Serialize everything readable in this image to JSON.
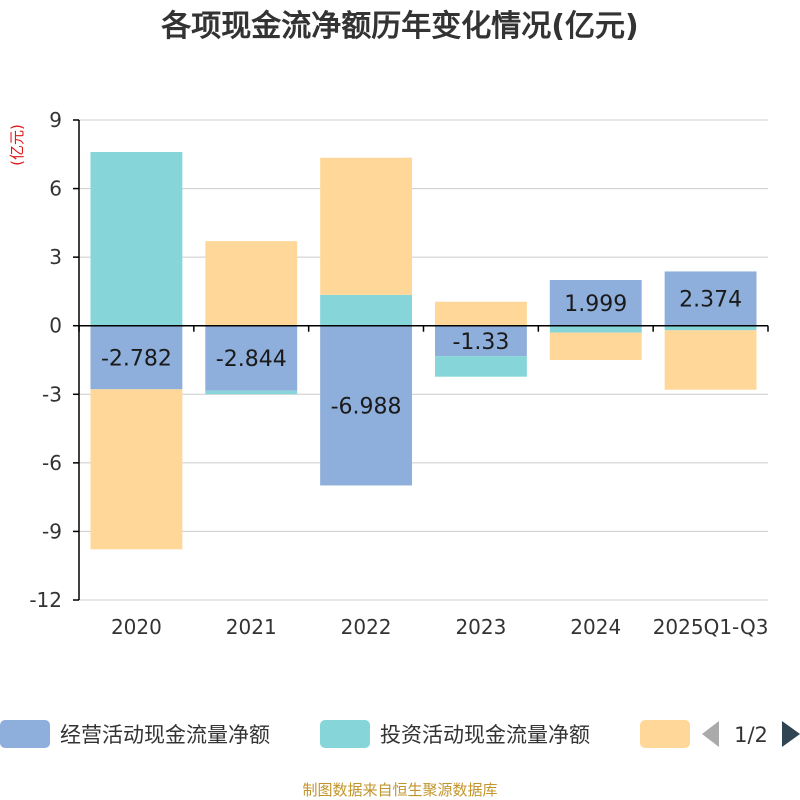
{
  "chart_data": {
    "type": "bar",
    "stacked": true,
    "title": "各项现金流净额历年变化情况(亿元)",
    "ylabel": "(亿元)",
    "ylim": [
      -12,
      9
    ],
    "yticks": [
      9,
      6,
      3,
      0,
      -3,
      -6,
      -9,
      -12
    ],
    "categories": [
      "2020",
      "2021",
      "2022",
      "2023",
      "2024",
      "2025Q1-Q3"
    ],
    "series": [
      {
        "name": "经营活动现金流量净额",
        "color": "#8eaedb",
        "values": [
          -2.782,
          -2.844,
          -6.988,
          -1.33,
          1.999,
          2.374
        ],
        "labels": [
          "-2.782",
          "-2.844",
          "-6.988",
          "-1.33",
          "1.999",
          "2.374"
        ]
      },
      {
        "name": "投资活动现金流量净额",
        "color": "#86d5d8",
        "values": [
          7.6,
          -0.15,
          1.35,
          -0.9,
          -0.3,
          -0.2
        ]
      },
      {
        "name": "",
        "color": "#ffd899",
        "values": [
          -7.0,
          3.7,
          6.0,
          1.05,
          -1.2,
          -2.6
        ]
      }
    ],
    "legend_position": "bottom",
    "grid": true
  },
  "legend": {
    "items": [
      "经营活动现金流量净额",
      "投资活动现金流量净额",
      ""
    ],
    "page": "1/2"
  },
  "footer": {
    "source": "制图数据来自恒生聚源数据库"
  },
  "colors": {
    "axis": "#000000",
    "grid": "#cccccc",
    "text": "#333333",
    "unit": "#e0191b",
    "source": "#c2952c",
    "nav_prev": "#aaaaaa",
    "nav_next": "#2f4554"
  }
}
